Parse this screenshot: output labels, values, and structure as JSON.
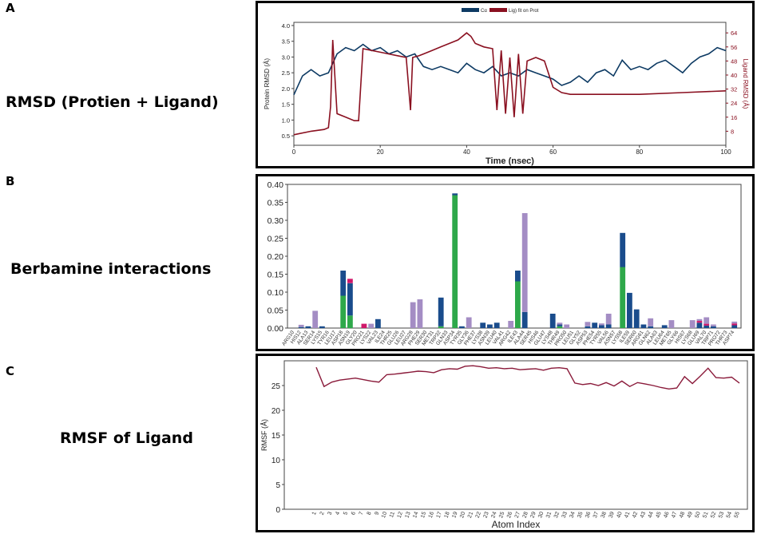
{
  "panels": {
    "a": {
      "letter": "A",
      "label": "RMSD (Protien + Ligand)"
    },
    "b": {
      "letter": "B",
      "label": "Berbamine interactions"
    },
    "c": {
      "letter": "C",
      "label": "RMSF of Ligand"
    }
  },
  "colors": {
    "protein_rmsd": "#0d3a63",
    "ligand_rmsd": "#8a1020",
    "hbond": "#2ea84a",
    "hydrophobic": "#1a4c8c",
    "ionic": "#d0186a",
    "water_bridge": "#a48dc4",
    "rmsf_line": "#8a1a3a"
  },
  "chart_data": [
    {
      "type": "line",
      "legend": [
        "Cα",
        "Lig) fit on Prot"
      ],
      "xlabel": "Time (nsec)",
      "ylabel": "Protein RMSD (Å)",
      "ylabel_right": "Ligand RMSD (Å)",
      "xlim": [
        0,
        100
      ],
      "ylim": [
        0.2,
        4.1
      ],
      "ylim_right": [
        0,
        70
      ],
      "xticks": [
        0,
        20,
        40,
        60,
        80,
        100
      ],
      "yticks": [
        "0.5",
        "1.0",
        "1.5",
        "2.0",
        "2.5",
        "3.0",
        "3.5",
        "4.0"
      ],
      "yticks_right": [
        "8",
        "16",
        "24",
        "32",
        "40",
        "48",
        "56",
        "64"
      ],
      "series": [
        {
          "name": "Cα",
          "axis": "left",
          "x": [
            0,
            2,
            4,
            6,
            8,
            10,
            12,
            14,
            16,
            18,
            20,
            22,
            24,
            26,
            28,
            30,
            32,
            34,
            36,
            38,
            40,
            42,
            44,
            46,
            48,
            50,
            52,
            54,
            56,
            58,
            60,
            62,
            64,
            66,
            68,
            70,
            72,
            74,
            76,
            78,
            80,
            82,
            84,
            86,
            88,
            90,
            92,
            94,
            96,
            98,
            100
          ],
          "y": [
            1.8,
            2.4,
            2.6,
            2.4,
            2.5,
            3.1,
            3.3,
            3.2,
            3.4,
            3.2,
            3.3,
            3.1,
            3.2,
            3.0,
            3.1,
            2.7,
            2.6,
            2.7,
            2.6,
            2.5,
            2.8,
            2.6,
            2.5,
            2.7,
            2.4,
            2.5,
            2.4,
            2.6,
            2.5,
            2.4,
            2.3,
            2.1,
            2.2,
            2.4,
            2.2,
            2.5,
            2.6,
            2.4,
            2.9,
            2.6,
            2.7,
            2.6,
            2.8,
            2.9,
            2.7,
            2.5,
            2.8,
            3.0,
            3.1,
            3.3,
            3.2
          ]
        },
        {
          "name": "Lig) fit on Prot",
          "axis": "right",
          "x": [
            0,
            4,
            7,
            8,
            8.5,
            9,
            10,
            12,
            14,
            15,
            15.5,
            16,
            18,
            20,
            22,
            24,
            26,
            27,
            27.5,
            29,
            30,
            32,
            34,
            36,
            38,
            40,
            41,
            42,
            44,
            46,
            47,
            48,
            49,
            50,
            51,
            52,
            53,
            54,
            56,
            58,
            60,
            62,
            64,
            70,
            80,
            90,
            100
          ],
          "y": [
            6,
            8,
            9,
            10,
            22,
            60,
            18,
            16,
            14,
            14,
            35,
            55,
            54,
            53,
            52,
            51,
            50,
            20,
            50,
            51,
            52,
            54,
            56,
            58,
            60,
            64,
            62,
            58,
            56,
            55,
            20,
            54,
            18,
            50,
            16,
            52,
            18,
            48,
            50,
            48,
            33,
            30,
            29,
            29,
            29,
            30,
            31
          ]
        }
      ]
    },
    {
      "type": "bar",
      "ylim": [
        0,
        0.4
      ],
      "yticks": [
        "0.00",
        "0.05",
        "0.10",
        "0.15",
        "0.20",
        "0.25",
        "0.30",
        "0.35",
        "0.40"
      ],
      "categories": [
        "ARG10",
        "HIS12",
        "ALA13",
        "SER14",
        "LYS15",
        "TYR16",
        "LEU17",
        "ASP18",
        "ASN19",
        "GLY20",
        "PRO21",
        "LYS22",
        "VAL23",
        "ILE24",
        "THR25",
        "GLU26",
        "LEU27",
        "ARG28",
        "PHE29",
        "SER30",
        "MET31",
        "TRP32",
        "GLN33",
        "ASP34",
        "TYR35",
        "GLY36",
        "PHE37",
        "LYS38",
        "ASN39",
        "LEU40",
        "VAL41",
        "ARG42",
        "ILE43",
        "ALA44",
        "SER45",
        "HIS46",
        "GLU47",
        "LYS48",
        "THR49",
        "PRO50",
        "LEU51",
        "GLY52",
        "ASP53",
        "PHE54",
        "TYR55",
        "VAL56",
        "ASN57",
        "LYS58",
        "ILE59",
        "SER60",
        "ARG61",
        "GLN62",
        "ALA63",
        "LEU64",
        "MET65",
        "GLY66",
        "HIS67",
        "LYS68",
        "GLU69",
        "VAL70",
        "TRP71",
        "PRO72",
        "THR73",
        "ASP74"
      ],
      "series": [
        {
          "name": "H-bonds",
          "values": [
            0,
            0,
            0,
            0,
            0,
            0,
            0,
            0.09,
            0.035,
            0,
            0,
            0,
            0,
            0,
            0,
            0,
            0,
            0,
            0,
            0,
            0,
            0.005,
            0,
            0.37,
            0,
            0,
            0,
            0,
            0,
            0,
            0,
            0,
            0.13,
            0,
            0,
            0,
            0,
            0,
            0.005,
            0,
            0,
            0,
            0,
            0,
            0,
            0,
            0,
            0.17,
            0,
            0,
            0,
            0,
            0,
            0,
            0,
            0,
            0,
            0,
            0,
            0,
            0,
            0,
            0,
            0
          ]
        },
        {
          "name": "Hydrophobic",
          "values": [
            0,
            0.003,
            0.005,
            0,
            0.005,
            0,
            0,
            0.07,
            0.09,
            0,
            0,
            0,
            0.025,
            0,
            0,
            0,
            0,
            0,
            0,
            0,
            0,
            0.08,
            0,
            0.005,
            0.005,
            0,
            0,
            0.015,
            0.01,
            0.015,
            0,
            0,
            0.03,
            0.045,
            0,
            0,
            0,
            0.04,
            0.005,
            0,
            0,
            0,
            0.005,
            0.015,
            0.008,
            0.01,
            0,
            0.095,
            0.098,
            0.052,
            0.01,
            0.005,
            0,
            0.008,
            0,
            0,
            0,
            0,
            0.015,
            0.007,
            0.005,
            0,
            0,
            0.008
          ]
        },
        {
          "name": "Ionic",
          "values": [
            0,
            0,
            0,
            0,
            0,
            0,
            0,
            0,
            0.012,
            0,
            0.012,
            0,
            0,
            0,
            0,
            0,
            0,
            0,
            0,
            0,
            0,
            0,
            0,
            0,
            0,
            0,
            0,
            0,
            0,
            0,
            0,
            0,
            0,
            0,
            0,
            0,
            0,
            0,
            0,
            0,
            0,
            0,
            0,
            0,
            0,
            0,
            0,
            0,
            0,
            0,
            0,
            0,
            0,
            0,
            0,
            0,
            0,
            0,
            0.005,
            0.005,
            0,
            0,
            0,
            0.005
          ]
        },
        {
          "name": "Water bridges",
          "values": [
            0,
            0.006,
            0,
            0.048,
            0,
            0,
            0,
            0,
            0,
            0,
            0,
            0.012,
            0,
            0,
            0,
            0,
            0,
            0.072,
            0.08,
            0,
            0,
            0,
            0,
            0,
            0,
            0.03,
            0,
            0,
            0,
            0,
            0,
            0.02,
            0,
            0.275,
            0,
            0,
            0,
            0,
            0.005,
            0.01,
            0,
            0,
            0.012,
            0,
            0.005,
            0.03,
            0,
            0,
            0,
            0,
            0,
            0.022,
            0,
            0,
            0.022,
            0,
            0,
            0.022,
            0.005,
            0.018,
            0.005,
            0,
            0,
            0.005
          ]
        }
      ]
    },
    {
      "type": "line",
      "xlabel": "Atom Index",
      "ylabel": "RMSF (Å)",
      "ylim": [
        0,
        30
      ],
      "yticks": [
        "0",
        "5",
        "10",
        "15",
        "20",
        "25"
      ],
      "x": [
        1,
        2,
        3,
        4,
        5,
        6,
        7,
        8,
        9,
        10,
        11,
        12,
        13,
        14,
        15,
        16,
        17,
        18,
        19,
        20,
        21,
        22,
        23,
        24,
        25,
        26,
        27,
        28,
        29,
        30,
        31,
        32,
        33,
        34,
        35,
        36,
        37,
        38,
        39,
        40,
        41,
        42,
        43,
        44,
        45,
        46,
        47,
        48,
        49,
        50,
        51,
        52,
        53,
        54,
        55
      ],
      "xtick_labels": [
        "1",
        "2",
        "3",
        "4",
        "5",
        "6",
        "7",
        "8",
        "9",
        "10",
        "11",
        "12",
        "13",
        "14",
        "15",
        "16",
        "17",
        "18",
        "19",
        "20",
        "21",
        "22",
        "23",
        "24",
        "25",
        "26",
        "27",
        "28",
        "29",
        "30",
        "31",
        "32",
        "33",
        "34",
        "35",
        "36",
        "37",
        "38",
        "39",
        "40",
        "41",
        "42",
        "43",
        "44",
        "45",
        "46",
        "47",
        "48",
        "49",
        "50",
        "51",
        "52",
        "53",
        "54",
        "55"
      ],
      "values": [
        28.7,
        24.8,
        25.7,
        26.1,
        26.3,
        26.5,
        26.2,
        25.9,
        25.7,
        27.2,
        27.3,
        27.5,
        27.7,
        27.9,
        27.8,
        27.6,
        28.2,
        28.4,
        28.3,
        28.9,
        29.0,
        28.8,
        28.5,
        28.6,
        28.4,
        28.5,
        28.2,
        28.3,
        28.4,
        28.1,
        28.5,
        28.6,
        28.4,
        25.5,
        25.2,
        25.4,
        25.0,
        25.6,
        24.9,
        25.9,
        24.8,
        25.6,
        25.3,
        25.0,
        24.6,
        24.3,
        24.5,
        26.8,
        25.4,
        26.9,
        28.5,
        26.6,
        26.5,
        26.7,
        25.5
      ]
    }
  ]
}
